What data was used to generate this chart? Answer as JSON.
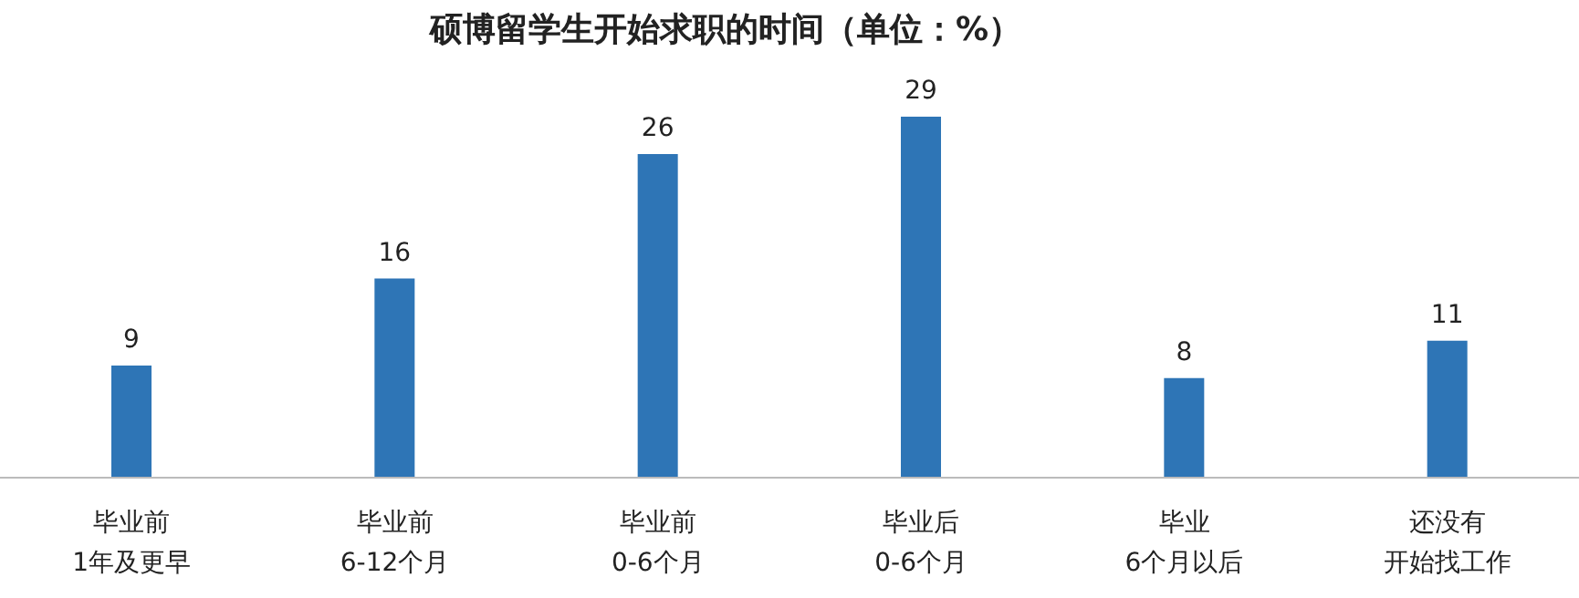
{
  "chart_data": {
    "type": "bar",
    "title": "硕博留学生开始求职的时间（单位：%）",
    "categories": [
      "毕业前\n1年及更早",
      "毕业前\n6-12个月",
      "毕业前\n0-6个月",
      "毕业后\n0-6个月",
      "毕业\n6个月以后",
      "还没有开始找工作"
    ],
    "values": [
      9,
      16,
      26,
      29,
      8,
      11
    ],
    "color": "#2e75b6",
    "data_labels": true,
    "grid": false,
    "legend": false
  }
}
